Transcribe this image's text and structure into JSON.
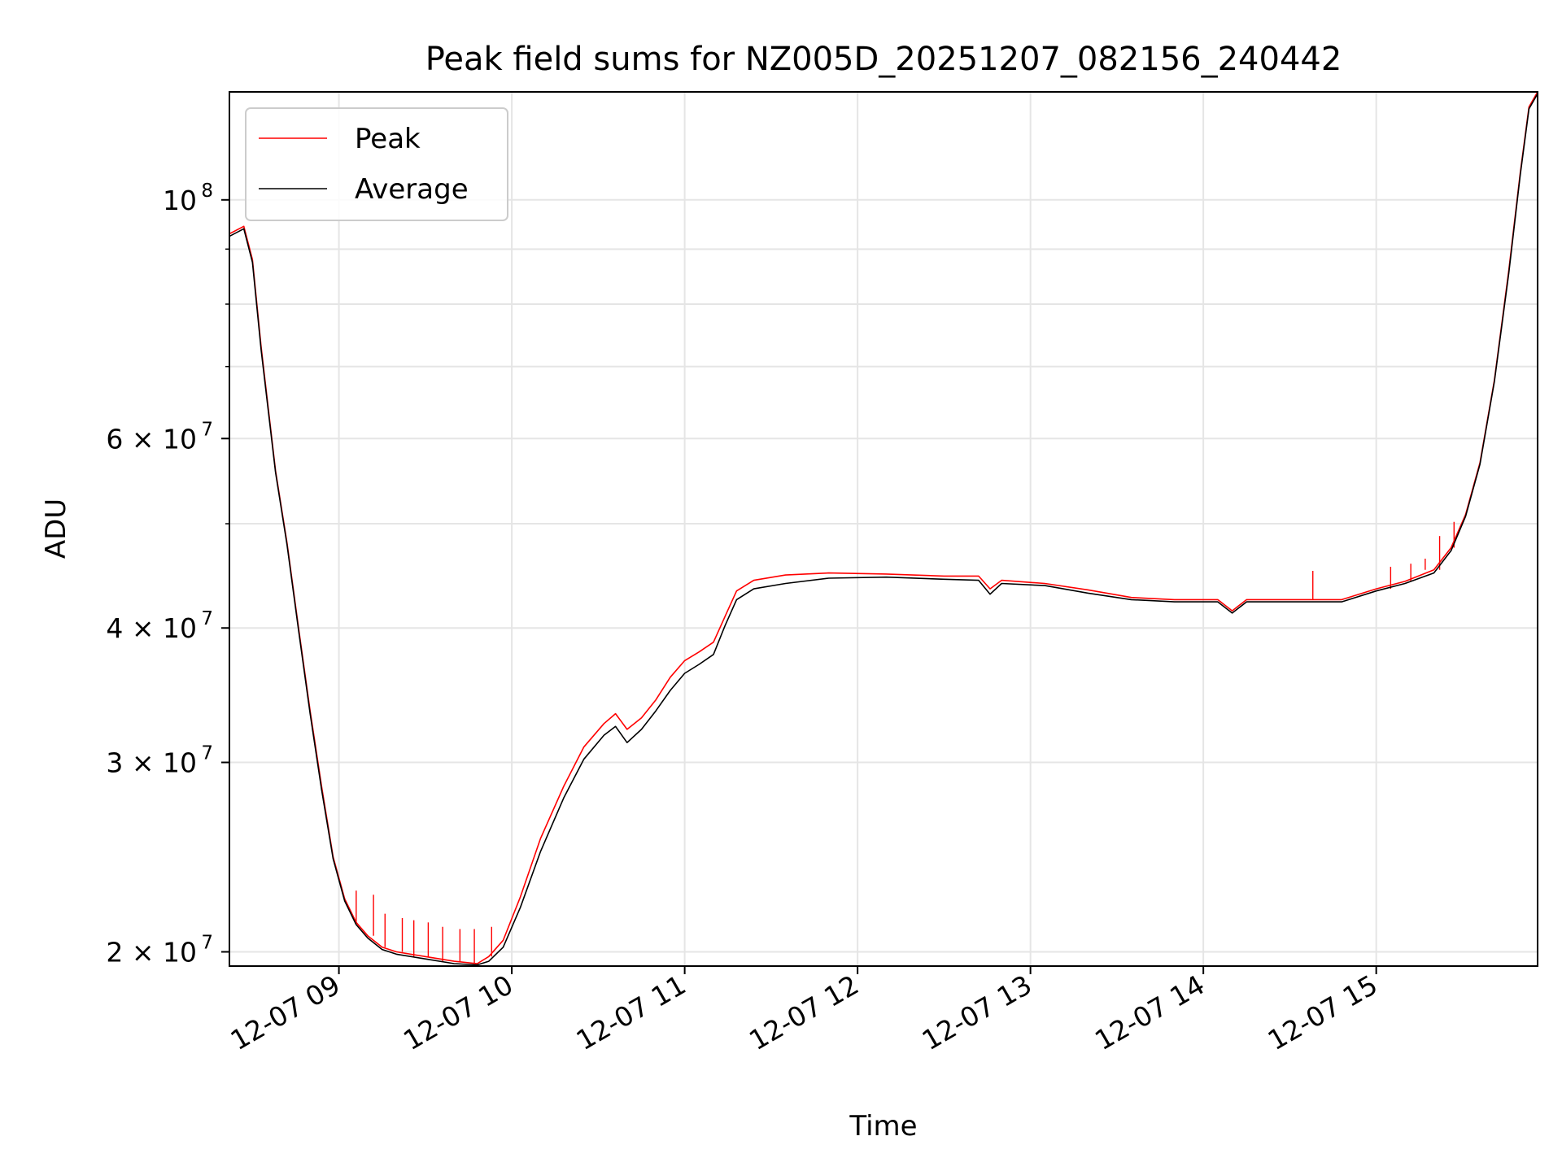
{
  "chart_data": {
    "type": "line",
    "title": "Peak field sums for NZ005D_20251207_082156_240442",
    "xlabel": "Time",
    "ylabel": "ADU",
    "y_scale": "log",
    "grid": true,
    "legend_position": "top-left",
    "xlim": [
      "2025-12-07 08:22",
      "2025-12-07 15:56"
    ],
    "ylim": [
      19400000,
      126000000
    ],
    "x_ticks": [
      {
        "label": "12-07 09",
        "value": "2025-12-07 09:00"
      },
      {
        "label": "12-07 10",
        "value": "2025-12-07 10:00"
      },
      {
        "label": "12-07 11",
        "value": "2025-12-07 11:00"
      },
      {
        "label": "12-07 12",
        "value": "2025-12-07 12:00"
      },
      {
        "label": "12-07 13",
        "value": "2025-12-07 13:00"
      },
      {
        "label": "12-07 14",
        "value": "2025-12-07 14:00"
      },
      {
        "label": "12-07 15",
        "value": "2025-12-07 15:00"
      }
    ],
    "y_major_ticks": [
      {
        "value": 20000000,
        "base": "2 × 10",
        "exp": "7"
      },
      {
        "value": 30000000,
        "base": "3 × 10",
        "exp": "7"
      },
      {
        "value": 40000000,
        "base": "4 × 10",
        "exp": "7"
      },
      {
        "value": 60000000,
        "base": "6 × 10",
        "exp": "7"
      },
      {
        "value": 100000000,
        "base": "10",
        "exp": "8"
      }
    ],
    "y_minor_ticks": [
      50000000,
      70000000,
      80000000,
      90000000
    ],
    "series": [
      {
        "name": "Peak",
        "color": "#ff0000",
        "points": [
          [
            "2025-12-07 08:22",
            93000000
          ],
          [
            "2025-12-07 08:27",
            94500000
          ],
          [
            "2025-12-07 08:30",
            88000000
          ],
          [
            "2025-12-07 08:33",
            73000000
          ],
          [
            "2025-12-07 08:38",
            56000000
          ],
          [
            "2025-12-07 08:42",
            48000000
          ],
          [
            "2025-12-07 08:46",
            40000000
          ],
          [
            "2025-12-07 08:50",
            33500000
          ],
          [
            "2025-12-07 08:54",
            28500000
          ],
          [
            "2025-12-07 08:58",
            24500000
          ],
          [
            "2025-12-07 09:02",
            22400000
          ],
          [
            "2025-12-07 09:06",
            21300000
          ],
          [
            "2025-12-07 09:10",
            20700000
          ],
          [
            "2025-12-07 09:15",
            20200000
          ],
          [
            "2025-12-07 09:20",
            20000000
          ],
          [
            "2025-12-07 09:30",
            19800000
          ],
          [
            "2025-12-07 09:40",
            19600000
          ],
          [
            "2025-12-07 09:48",
            19500000
          ],
          [
            "2025-12-07 09:52",
            19800000
          ],
          [
            "2025-12-07 09:57",
            20500000
          ],
          [
            "2025-12-07 10:03",
            22500000
          ],
          [
            "2025-12-07 10:10",
            25500000
          ],
          [
            "2025-12-07 10:18",
            28500000
          ],
          [
            "2025-12-07 10:25",
            31000000
          ],
          [
            "2025-12-07 10:32",
            32600000
          ],
          [
            "2025-12-07 10:36",
            33300000
          ],
          [
            "2025-12-07 10:40",
            32200000
          ],
          [
            "2025-12-07 10:45",
            33000000
          ],
          [
            "2025-12-07 10:50",
            34300000
          ],
          [
            "2025-12-07 10:55",
            36000000
          ],
          [
            "2025-12-07 11:00",
            37300000
          ],
          [
            "2025-12-07 11:05",
            38000000
          ],
          [
            "2025-12-07 11:10",
            38800000
          ],
          [
            "2025-12-07 11:14",
            41000000
          ],
          [
            "2025-12-07 11:18",
            43300000
          ],
          [
            "2025-12-07 11:24",
            44300000
          ],
          [
            "2025-12-07 11:35",
            44800000
          ],
          [
            "2025-12-07 11:50",
            45000000
          ],
          [
            "2025-12-07 12:10",
            44900000
          ],
          [
            "2025-12-07 12:30",
            44700000
          ],
          [
            "2025-12-07 12:42",
            44700000
          ],
          [
            "2025-12-07 12:46",
            43500000
          ],
          [
            "2025-12-07 12:50",
            44300000
          ],
          [
            "2025-12-07 13:05",
            44000000
          ],
          [
            "2025-12-07 13:20",
            43400000
          ],
          [
            "2025-12-07 13:35",
            42700000
          ],
          [
            "2025-12-07 13:50",
            42500000
          ],
          [
            "2025-12-07 14:05",
            42500000
          ],
          [
            "2025-12-07 14:10",
            41500000
          ],
          [
            "2025-12-07 14:15",
            42500000
          ],
          [
            "2025-12-07 14:30",
            42500000
          ],
          [
            "2025-12-07 14:48",
            42500000
          ],
          [
            "2025-12-07 15:00",
            43500000
          ],
          [
            "2025-12-07 15:10",
            44200000
          ],
          [
            "2025-12-07 15:20",
            45300000
          ],
          [
            "2025-12-07 15:26",
            47500000
          ],
          [
            "2025-12-07 15:31",
            51000000
          ],
          [
            "2025-12-07 15:36",
            57000000
          ],
          [
            "2025-12-07 15:41",
            68000000
          ],
          [
            "2025-12-07 15:46",
            86000000
          ],
          [
            "2025-12-07 15:50",
            106000000
          ],
          [
            "2025-12-07 15:53",
            122000000
          ],
          [
            "2025-12-07 15:56",
            126000000
          ]
        ],
        "spikes": [
          [
            "2025-12-07 09:06",
            22800000
          ],
          [
            "2025-12-07 09:12",
            22600000
          ],
          [
            "2025-12-07 09:16",
            21700000
          ],
          [
            "2025-12-07 09:22",
            21500000
          ],
          [
            "2025-12-07 09:26",
            21400000
          ],
          [
            "2025-12-07 09:31",
            21300000
          ],
          [
            "2025-12-07 09:36",
            21100000
          ],
          [
            "2025-12-07 09:42",
            21000000
          ],
          [
            "2025-12-07 09:47",
            21000000
          ],
          [
            "2025-12-07 09:53",
            21100000
          ],
          [
            "2025-12-07 14:38",
            45200000
          ],
          [
            "2025-12-07 15:05",
            45600000
          ],
          [
            "2025-12-07 15:12",
            45900000
          ],
          [
            "2025-12-07 15:17",
            46400000
          ],
          [
            "2025-12-07 15:22",
            48700000
          ],
          [
            "2025-12-07 15:27",
            50200000
          ]
        ]
      },
      {
        "name": "Average",
        "color": "#000000",
        "points": [
          [
            "2025-12-07 08:22",
            92500000
          ],
          [
            "2025-12-07 08:27",
            94000000
          ],
          [
            "2025-12-07 08:30",
            87500000
          ],
          [
            "2025-12-07 08:33",
            72500000
          ],
          [
            "2025-12-07 08:38",
            55800000
          ],
          [
            "2025-12-07 08:42",
            47800000
          ],
          [
            "2025-12-07 08:46",
            39800000
          ],
          [
            "2025-12-07 08:50",
            33300000
          ],
          [
            "2025-12-07 08:54",
            28300000
          ],
          [
            "2025-12-07 08:58",
            24400000
          ],
          [
            "2025-12-07 09:02",
            22300000
          ],
          [
            "2025-12-07 09:06",
            21200000
          ],
          [
            "2025-12-07 09:10",
            20600000
          ],
          [
            "2025-12-07 09:15",
            20100000
          ],
          [
            "2025-12-07 09:20",
            19900000
          ],
          [
            "2025-12-07 09:30",
            19700000
          ],
          [
            "2025-12-07 09:40",
            19500000
          ],
          [
            "2025-12-07 09:48",
            19450000
          ],
          [
            "2025-12-07 09:52",
            19600000
          ],
          [
            "2025-12-07 09:57",
            20200000
          ],
          [
            "2025-12-07 10:03",
            22000000
          ],
          [
            "2025-12-07 10:10",
            24800000
          ],
          [
            "2025-12-07 10:18",
            27800000
          ],
          [
            "2025-12-07 10:25",
            30200000
          ],
          [
            "2025-12-07 10:32",
            31800000
          ],
          [
            "2025-12-07 10:36",
            32400000
          ],
          [
            "2025-12-07 10:40",
            31300000
          ],
          [
            "2025-12-07 10:45",
            32200000
          ],
          [
            "2025-12-07 10:50",
            33500000
          ],
          [
            "2025-12-07 10:55",
            35000000
          ],
          [
            "2025-12-07 11:00",
            36300000
          ],
          [
            "2025-12-07 11:05",
            37000000
          ],
          [
            "2025-12-07 11:10",
            37800000
          ],
          [
            "2025-12-07 11:14",
            40200000
          ],
          [
            "2025-12-07 11:18",
            42500000
          ],
          [
            "2025-12-07 11:24",
            43500000
          ],
          [
            "2025-12-07 11:35",
            44000000
          ],
          [
            "2025-12-07 11:50",
            44500000
          ],
          [
            "2025-12-07 12:10",
            44600000
          ],
          [
            "2025-12-07 12:30",
            44400000
          ],
          [
            "2025-12-07 12:42",
            44300000
          ],
          [
            "2025-12-07 12:46",
            43000000
          ],
          [
            "2025-12-07 12:50",
            44000000
          ],
          [
            "2025-12-07 13:05",
            43800000
          ],
          [
            "2025-12-07 13:20",
            43100000
          ],
          [
            "2025-12-07 13:35",
            42500000
          ],
          [
            "2025-12-07 13:50",
            42300000
          ],
          [
            "2025-12-07 14:05",
            42300000
          ],
          [
            "2025-12-07 14:10",
            41300000
          ],
          [
            "2025-12-07 14:15",
            42300000
          ],
          [
            "2025-12-07 14:30",
            42300000
          ],
          [
            "2025-12-07 14:48",
            42300000
          ],
          [
            "2025-12-07 15:00",
            43300000
          ],
          [
            "2025-12-07 15:10",
            44000000
          ],
          [
            "2025-12-07 15:20",
            45000000
          ],
          [
            "2025-12-07 15:26",
            47200000
          ],
          [
            "2025-12-07 15:31",
            50800000
          ],
          [
            "2025-12-07 15:36",
            56800000
          ],
          [
            "2025-12-07 15:41",
            67800000
          ],
          [
            "2025-12-07 15:46",
            85500000
          ],
          [
            "2025-12-07 15:50",
            105500000
          ],
          [
            "2025-12-07 15:53",
            121500000
          ],
          [
            "2025-12-07 15:56",
            125500000
          ]
        ]
      }
    ]
  }
}
